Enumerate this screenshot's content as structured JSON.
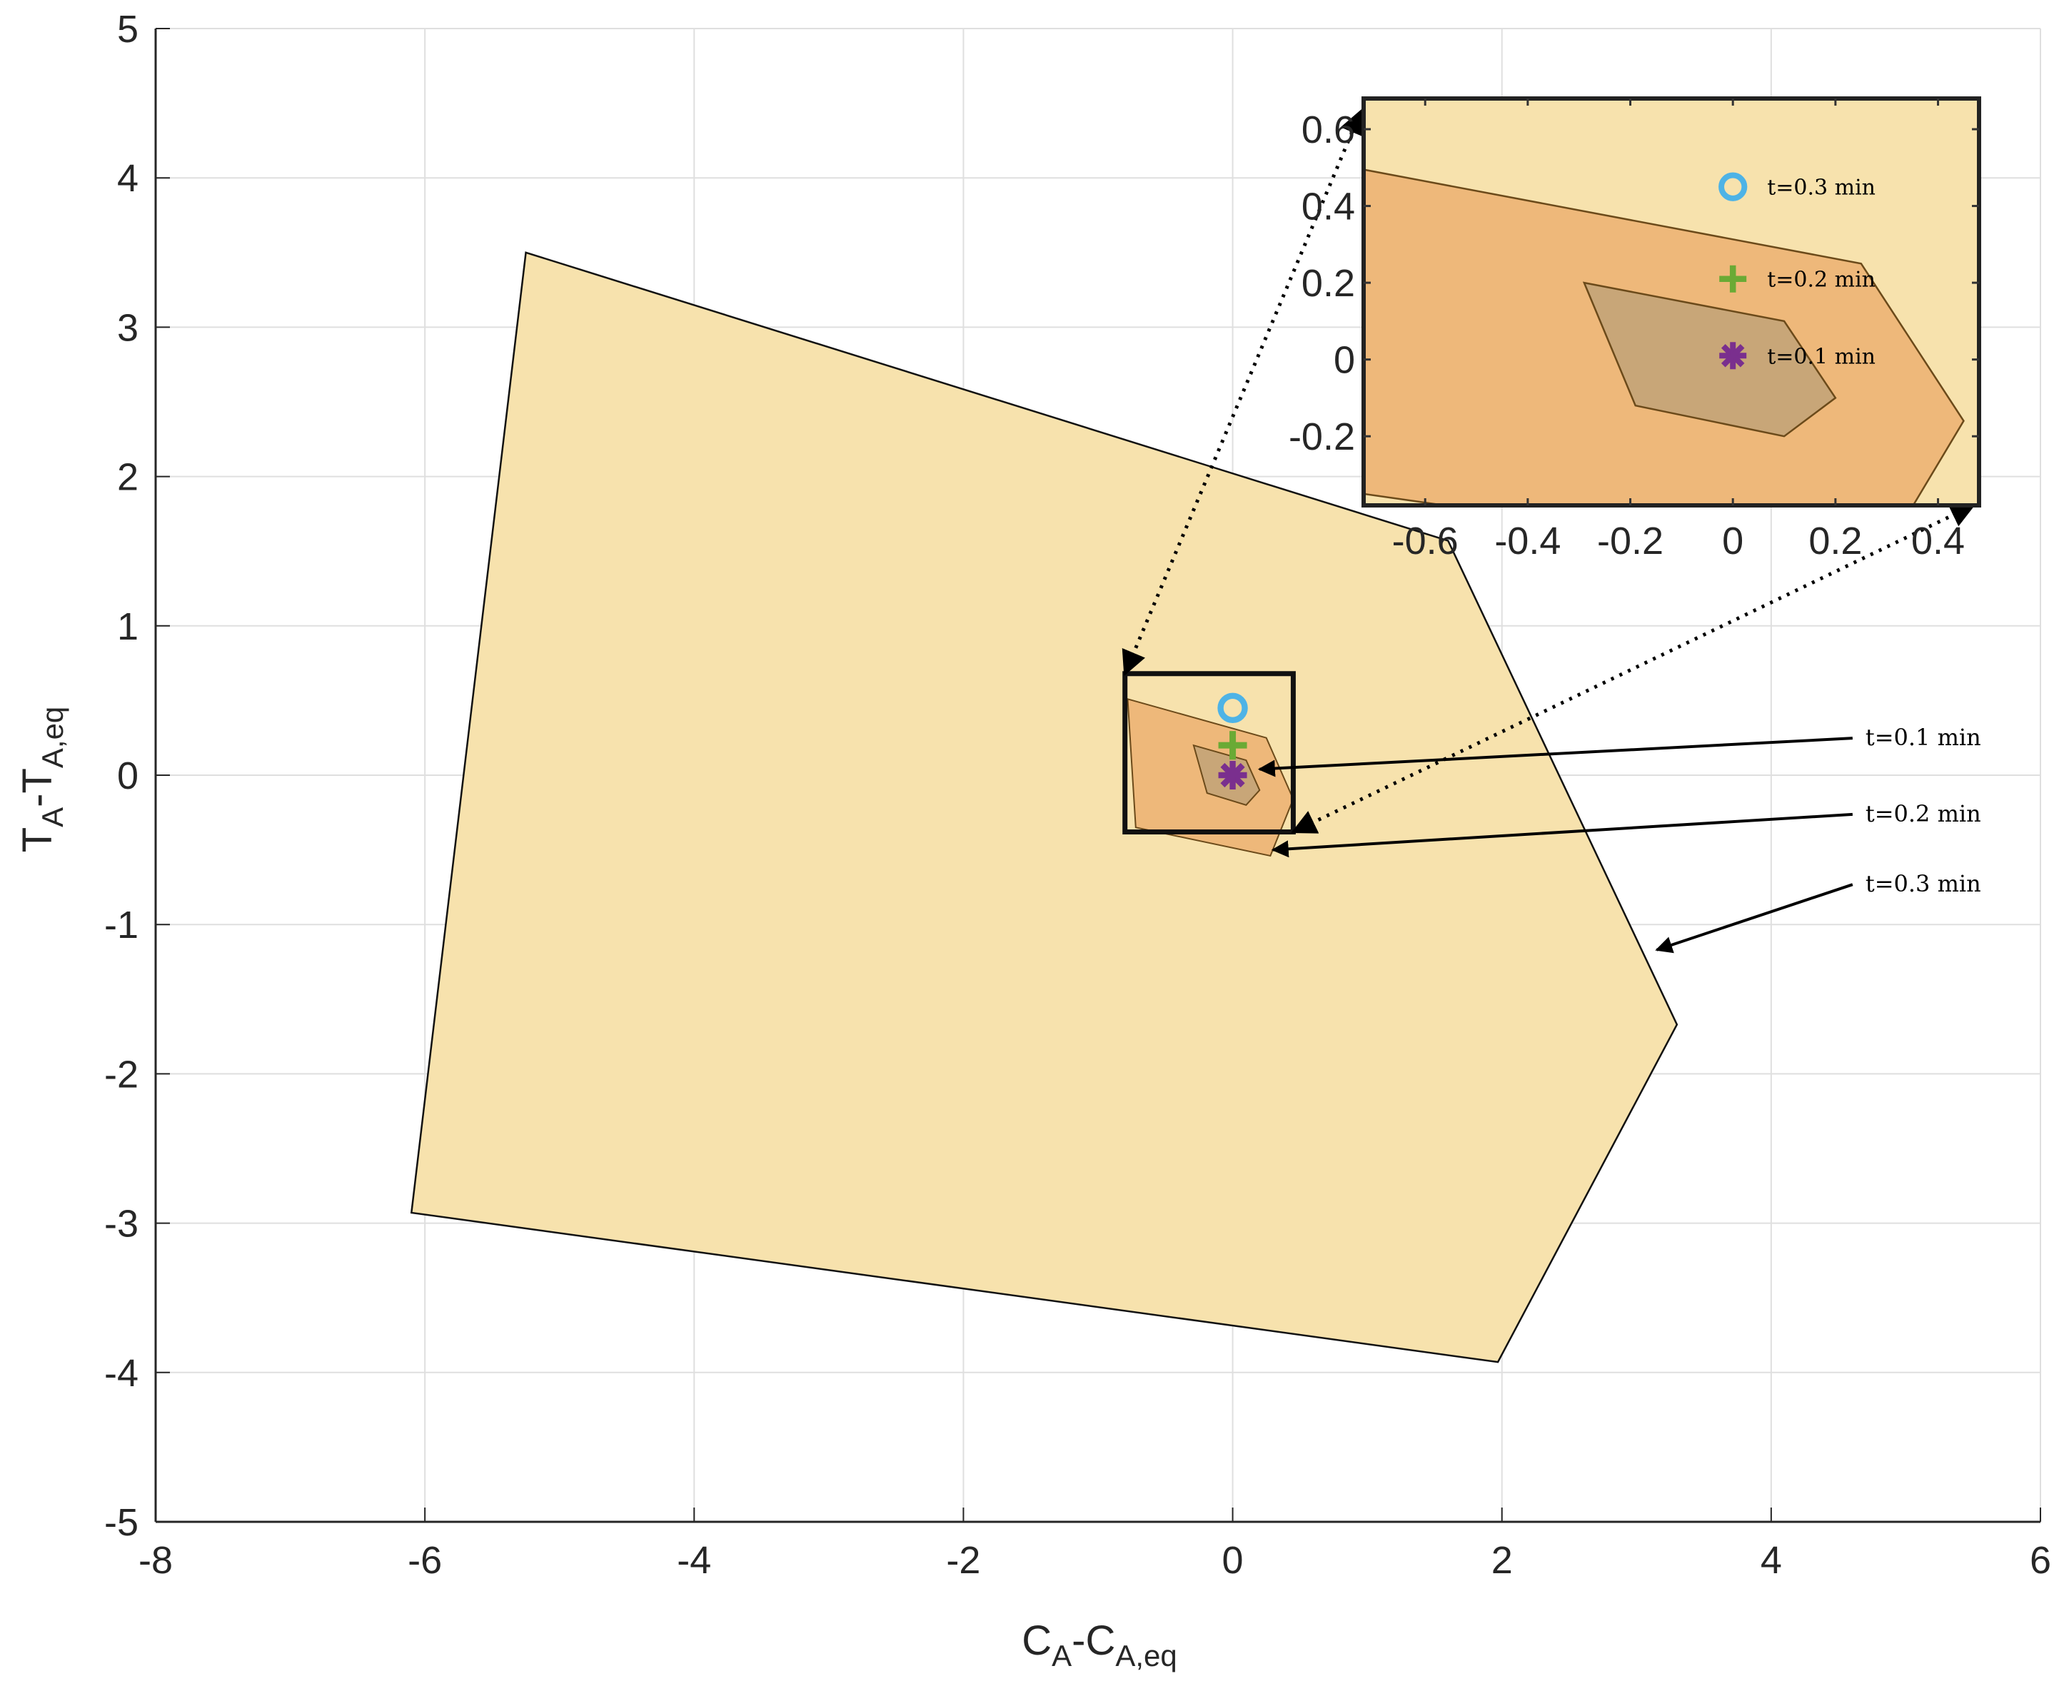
{
  "chart_data": {
    "type": "area",
    "title": "",
    "xlabel_main": "C",
    "xlabel_sub1": "A",
    "xlabel_mid": "-C",
    "xlabel_sub2": "A,eq",
    "ylabel_main": "T",
    "ylabel_sub1": "A",
    "ylabel_mid": "-T",
    "ylabel_sub2": "A,eq",
    "xlim": [
      -8,
      6
    ],
    "ylim": [
      -5,
      5
    ],
    "xticks": [
      -8,
      -6,
      -4,
      -2,
      0,
      2,
      4,
      6
    ],
    "yticks": [
      -5,
      -4,
      -3,
      -2,
      -1,
      0,
      1,
      2,
      3,
      4,
      5
    ],
    "grid": true,
    "colors": {
      "outer_fill": "#f7e2ad",
      "middle_fill": "#eeb87a",
      "inner_fill": "#c8a678",
      "circle_marker": "#4eb3e6",
      "plus_marker": "#6aaa35",
      "star_marker": "#7a2f8e"
    },
    "series": [
      {
        "name": "t=0.3 min",
        "vertices": [
          [
            -5.25,
            3.5
          ],
          [
            1.6,
            1.57
          ],
          [
            3.3,
            -1.67
          ],
          [
            1.97,
            -3.93
          ],
          [
            -6.1,
            -2.93
          ]
        ]
      },
      {
        "name": "t=0.2 min",
        "vertices": [
          [
            -0.78,
            0.51
          ],
          [
            0.25,
            0.25
          ],
          [
            0.45,
            -0.16
          ],
          [
            0.28,
            -0.54
          ],
          [
            -0.72,
            -0.35
          ]
        ]
      },
      {
        "name": "t=0.1 min",
        "vertices": [
          [
            -0.29,
            0.2
          ],
          [
            0.1,
            0.1
          ],
          [
            0.2,
            -0.1
          ],
          [
            0.1,
            -0.2
          ],
          [
            -0.19,
            -0.12
          ]
        ]
      }
    ],
    "points": [
      {
        "marker": "circle",
        "x": 0,
        "y": 0.45
      },
      {
        "marker": "plus",
        "x": 0,
        "y": 0.2
      },
      {
        "marker": "star",
        "x": 0,
        "y": 0
      }
    ],
    "zoom_box": {
      "xlim": [
        -0.8,
        0.45
      ],
      "ylim": [
        -0.38,
        0.68
      ]
    },
    "inset": {
      "xlim": [
        -0.72,
        0.48
      ],
      "yrange": [
        -0.38,
        0.68
      ],
      "xticks": [
        -0.6,
        -0.4,
        -0.2,
        0,
        0.2,
        0.4
      ],
      "xtick_labels": [
        "-0.6",
        "-0.4",
        "-0.2",
        "0",
        "0.2",
        "0.4"
      ],
      "yticks": [
        0.6,
        0.4,
        0.2,
        0,
        -0.2
      ],
      "ytick_labels": [
        "0.6",
        "0.4",
        "0.2",
        "0",
        "-0.2"
      ],
      "legend": [
        {
          "marker": "circle",
          "label": "t=0.3 min",
          "x": 0,
          "y": 0.45
        },
        {
          "marker": "plus",
          "label": "t=0.2 min",
          "x": 0,
          "y": 0.21
        },
        {
          "marker": "star",
          "label": "t=0.1 min",
          "x": 0,
          "y": 0.01
        }
      ]
    },
    "annotations": [
      {
        "text": "t=0.1 min",
        "x_text": 4.7,
        "y_text": 0.2,
        "x_head": 0.2,
        "y_head": 0.04
      },
      {
        "text": "t=0.2 min",
        "x_text": 4.7,
        "y_text": -0.31,
        "x_head": 0.3,
        "y_head": -0.5
      },
      {
        "text": "t=0.3 min",
        "x_text": 4.7,
        "y_text": -0.78,
        "x_head": 3.15,
        "y_head": -1.17
      }
    ]
  }
}
